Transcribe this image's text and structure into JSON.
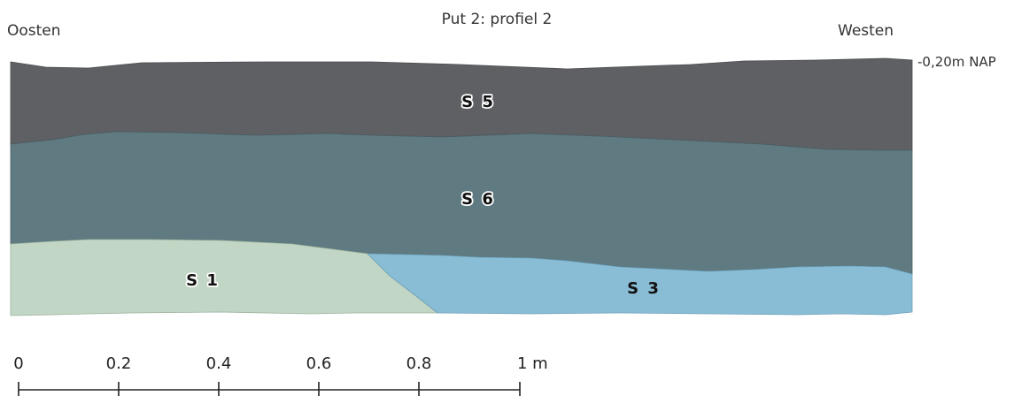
{
  "title": "Put 2: profiel 2",
  "direction_left": "Oosten",
  "direction_right": "Westen",
  "level_label": "-0,20m NAP",
  "layers": [
    {
      "id": "S5",
      "label": "S 5",
      "color": "#5e6064"
    },
    {
      "id": "S6",
      "label": "S 6",
      "color": "#5f7a80"
    },
    {
      "id": "S1",
      "label": "S 1",
      "color": "#c1d6c4"
    },
    {
      "id": "S3",
      "label": "S 3",
      "color": "#89bdd6"
    }
  ],
  "scale_bar": {
    "unit_label": "1 m",
    "ticks": [
      "0",
      "0.2",
      "0.4",
      "0.6",
      "0.8",
      "1 m"
    ]
  }
}
